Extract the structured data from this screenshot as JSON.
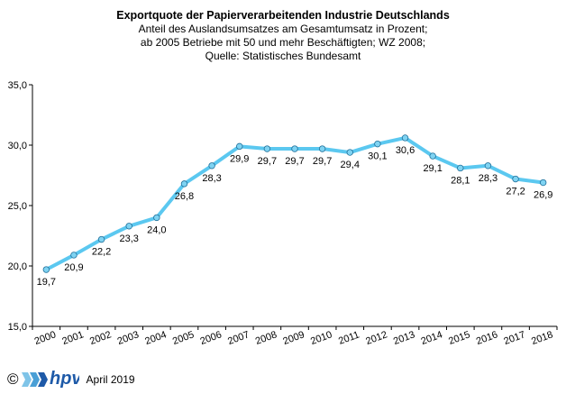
{
  "chart_data": {
    "type": "line",
    "title": "Exportquote der Papierverarbeitenden Industrie Deutschlands",
    "subtitle_lines": [
      "Anteil des Auslandsumsatzes am Gesamtumsatz in Prozent;",
      "ab 2005 Betriebe mit 50 und mehr Beschäftigten; WZ 2008;",
      "Quelle: Statistisches Bundesamt"
    ],
    "categories": [
      "2000",
      "2001",
      "2002",
      "2003",
      "2004",
      "2005",
      "2006",
      "2007",
      "2008",
      "2009",
      "2010",
      "2011",
      "2012",
      "2013",
      "2014",
      "2015",
      "2016",
      "2017",
      "2018"
    ],
    "values": [
      19.7,
      20.9,
      22.2,
      23.3,
      24.0,
      26.8,
      28.3,
      29.9,
      29.7,
      29.7,
      29.7,
      29.4,
      30.1,
      30.6,
      29.1,
      28.1,
      28.3,
      27.2,
      26.9
    ],
    "value_labels": [
      "19,7",
      "20,9",
      "22,2",
      "23,3",
      "24,0",
      "26,8",
      "28,3",
      "29,9",
      "29,7",
      "29,7",
      "29,7",
      "29,4",
      "30,1",
      "30,6",
      "29,1",
      "28,1",
      "28,3",
      "27,2",
      "26,9"
    ],
    "y_ticks": [
      15,
      20,
      25,
      30,
      35
    ],
    "y_tick_labels": [
      "15,0",
      "20,0",
      "25,0",
      "30,0",
      "35,0"
    ],
    "ylim": [
      15,
      35
    ],
    "xlabel": "",
    "ylabel": "",
    "grid": false,
    "line_color": "#5bc8f0",
    "marker_color": "#7fd3f2"
  },
  "footer": {
    "copyright": "©",
    "logo_text": "hpv",
    "date": "April 2019"
  },
  "colors": {
    "logo_blue": "#1e5aa8",
    "logo_light": "#7fc4e8"
  }
}
